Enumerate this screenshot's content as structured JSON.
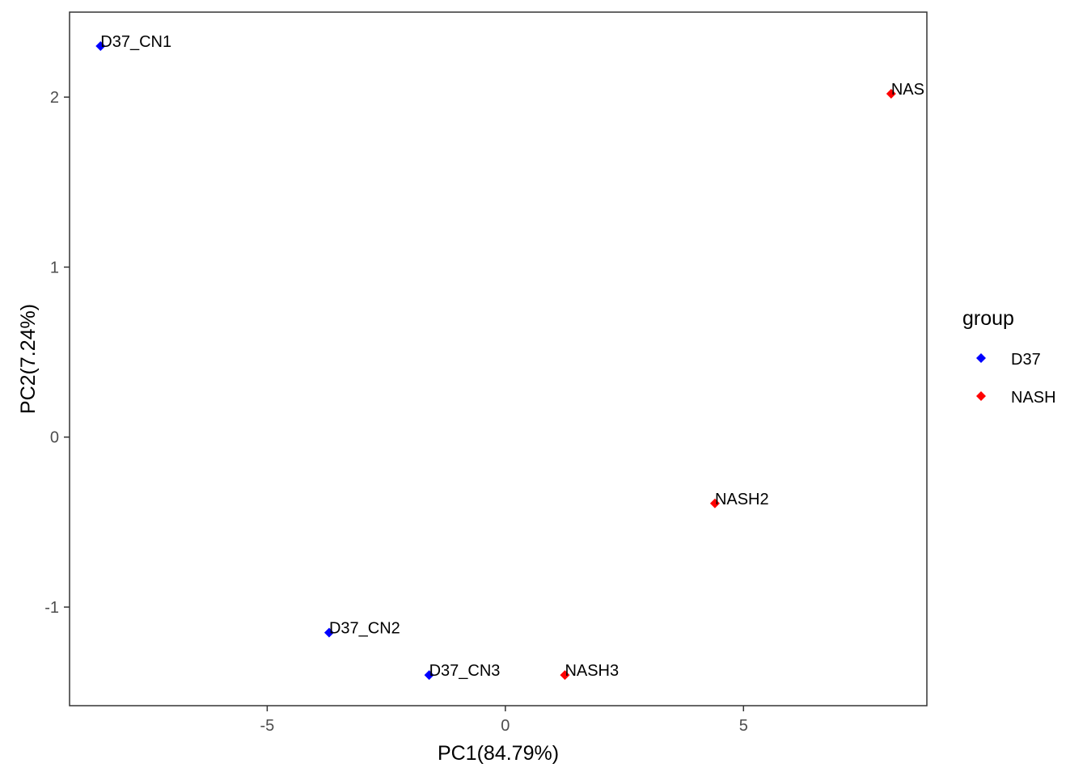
{
  "chart_data": {
    "type": "scatter",
    "title": "",
    "xlabel": "PC1(84.79%)",
    "ylabel": "PC2(7.24%)",
    "xlim": [
      -9.15,
      8.85
    ],
    "ylim": [
      -1.58,
      2.5
    ],
    "xticks": [
      -5,
      0,
      5
    ],
    "xtick_labels": [
      "-5",
      "0",
      "5"
    ],
    "yticks": [
      -1,
      0,
      1,
      2
    ],
    "ytick_labels": [
      "-1",
      "0",
      "1",
      "2"
    ],
    "grid": false,
    "legend_title": "group",
    "legend_position": "right",
    "series": [
      {
        "name": "D37",
        "color": "#0000FF",
        "marker": "diamond",
        "points": [
          {
            "label": "D37_CN1",
            "x": -8.5,
            "y": 2.3
          },
          {
            "label": "D37_CN2",
            "x": -3.7,
            "y": -1.15
          },
          {
            "label": "D37_CN3",
            "x": -1.6,
            "y": -1.4
          }
        ]
      },
      {
        "name": "NASH",
        "color": "#FF0000",
        "marker": "diamond",
        "points": [
          {
            "label": "NAS",
            "x": 8.1,
            "y": 2.02
          },
          {
            "label": "NASH2",
            "x": 4.4,
            "y": -0.39
          },
          {
            "label": "NASH3",
            "x": 1.25,
            "y": -1.4
          }
        ]
      }
    ]
  }
}
